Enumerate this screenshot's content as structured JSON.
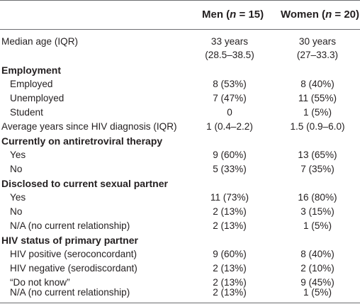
{
  "header": {
    "men": "Men (n = 15)",
    "men_pre": "Men (",
    "men_n": "n",
    "men_post": " = 15)",
    "women_pre": "Women (",
    "women_n": "n",
    "women_post": " = 20)"
  },
  "rows": [
    {
      "label": "Median age (IQR)",
      "men": "33 years",
      "women": "30 years"
    },
    {
      "label": "",
      "men": "(28.5–38.5)",
      "women": "(27–33.3)"
    },
    {
      "label": "Employment",
      "men": "",
      "women": ""
    },
    {
      "label": "Employed",
      "men": "8 (53%)",
      "women": "8 (40%)"
    },
    {
      "label": "Unemployed",
      "men": "7 (47%)",
      "women": "11 (55%)"
    },
    {
      "label": "Student",
      "men": "0",
      "women": "1 (5%)"
    },
    {
      "label": "Average years since HIV diagnosis (IQR)",
      "men": "1 (0.4–2.2)",
      "women": "1.5 (0.9–6.0)"
    },
    {
      "label": "Currently on antiretroviral therapy",
      "men": "",
      "women": ""
    },
    {
      "label": "Yes",
      "men": "9 (60%)",
      "women": "13 (65%)"
    },
    {
      "label": "No",
      "men": "5 (33%)",
      "women": "7 (35%)"
    },
    {
      "label": "Disclosed to current sexual partner",
      "men": "",
      "women": ""
    },
    {
      "label": "Yes",
      "men": "11 (73%)",
      "women": "16 (80%)"
    },
    {
      "label": "No",
      "men": "2 (13%)",
      "women": "3 (15%)"
    },
    {
      "label": "N/A (no current relationship)",
      "men": "2 (13%)",
      "women": "1 (5%)"
    },
    {
      "label": "HIV status of primary partner",
      "men": "",
      "women": ""
    },
    {
      "label": "HIV positive (seroconcordant)",
      "men": "9 (60%)",
      "women": "8 (40%)"
    },
    {
      "label": "HIV negative (serodiscordant)",
      "men": "2 (13%)",
      "women": "2 (10%)"
    },
    {
      "label": "“Do not know”",
      "men": "2 (13%)",
      "women": "9 (45%)"
    },
    {
      "label": "N/A (no current relationship)",
      "men": "2 (13%)",
      "women": "1 (5%)"
    }
  ]
}
